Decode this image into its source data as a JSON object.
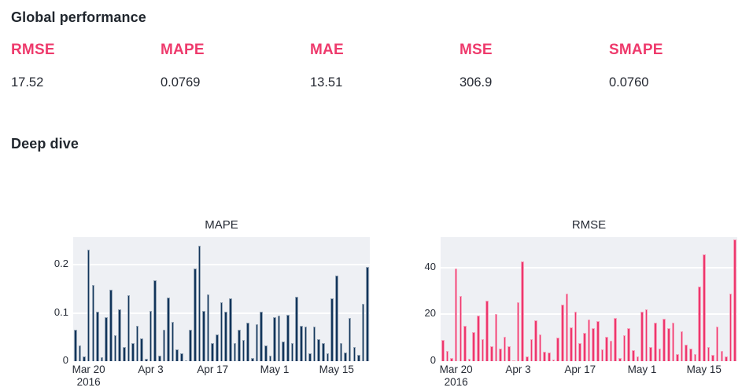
{
  "global_performance": {
    "title": "Global performance",
    "metrics": [
      {
        "label": "RMSE",
        "value": "17.52"
      },
      {
        "label": "MAPE",
        "value": "0.0769"
      },
      {
        "label": "MAE",
        "value": "13.51"
      },
      {
        "label": "MSE",
        "value": "306.9"
      },
      {
        "label": "SMAPE",
        "value": "0.0760"
      }
    ]
  },
  "deep_dive": {
    "title": "Deep dive"
  },
  "colors": {
    "accent_pink": "#ee3a6c",
    "bar_navy": "#12355b",
    "bar_pink": "#ed376d",
    "plot_background": "#eef0f4",
    "text_dark": "#21272e"
  },
  "chart_data": [
    {
      "type": "bar",
      "title": "MAPE",
      "bar_color": "#12355b",
      "ylim": [
        0,
        0.2575
      ],
      "yticks": [
        0,
        0.1,
        0.2
      ],
      "ytick_labels": [
        "0",
        "0.1",
        "0.2"
      ],
      "x_tick_indices": [
        3,
        17,
        31,
        45,
        59
      ],
      "x_tick_labels": [
        "Mar 20",
        "Apr 3",
        "Apr 17",
        "May 1",
        "May 15"
      ],
      "x_tick_sublabels": [
        "2016",
        "",
        "",
        "",
        ""
      ],
      "grid": true,
      "values": [
        0.065,
        0.033,
        0.01,
        0.232,
        0.158,
        0.102,
        0.008,
        0.092,
        0.148,
        0.053,
        0.108,
        0.03,
        0.137,
        0.038,
        0.074,
        0.047,
        0.005,
        0.104,
        0.168,
        0.012,
        0.065,
        0.132,
        0.082,
        0.025,
        0.017,
        0.002,
        0.065,
        0.192,
        0.239,
        0.105,
        0.139,
        0.037,
        0.055,
        0.122,
        0.102,
        0.13,
        0.037,
        0.065,
        0.044,
        0.08,
        0.007,
        0.076,
        0.102,
        0.033,
        0.012,
        0.092,
        0.095,
        0.04,
        0.096,
        0.037,
        0.134,
        0.074,
        0.071,
        0.016,
        0.071,
        0.045,
        0.038,
        0.016,
        0.13,
        0.178,
        0.037,
        0.018,
        0.089,
        0.029,
        0.013,
        0.119,
        0.196
      ]
    },
    {
      "type": "bar",
      "title": "RMSE",
      "bar_color": "#ed376d",
      "ylim": [
        0,
        53
      ],
      "yticks": [
        0,
        20,
        40
      ],
      "ytick_labels": [
        "0",
        "20",
        "40"
      ],
      "x_tick_indices": [
        3,
        17,
        31,
        45,
        59
      ],
      "x_tick_labels": [
        "Mar 20",
        "Apr 3",
        "Apr 17",
        "May 1",
        "May 15"
      ],
      "x_tick_sublabels": [
        "2016",
        "",
        "",
        "",
        ""
      ],
      "grid": true,
      "values": [
        9,
        4.5,
        1.5,
        39.5,
        28,
        15,
        1,
        12.5,
        19.5,
        9.5,
        26,
        6.5,
        20,
        5.5,
        10.5,
        6.5,
        0.5,
        25,
        42.5,
        2,
        9.3,
        17.5,
        11.5,
        4,
        3.7,
        0.7,
        10,
        24,
        29,
        14.5,
        21.3,
        7.7,
        12,
        17.7,
        14,
        17,
        5,
        10.5,
        8.7,
        18.5,
        1.5,
        11,
        14,
        4.8,
        2,
        21.3,
        22,
        6,
        16.3,
        5.5,
        18,
        14,
        16.3,
        3,
        12.7,
        7,
        5.5,
        3,
        32,
        45.5,
        6,
        2.7,
        14.8,
        4.3,
        2,
        28.8,
        52
      ]
    }
  ]
}
